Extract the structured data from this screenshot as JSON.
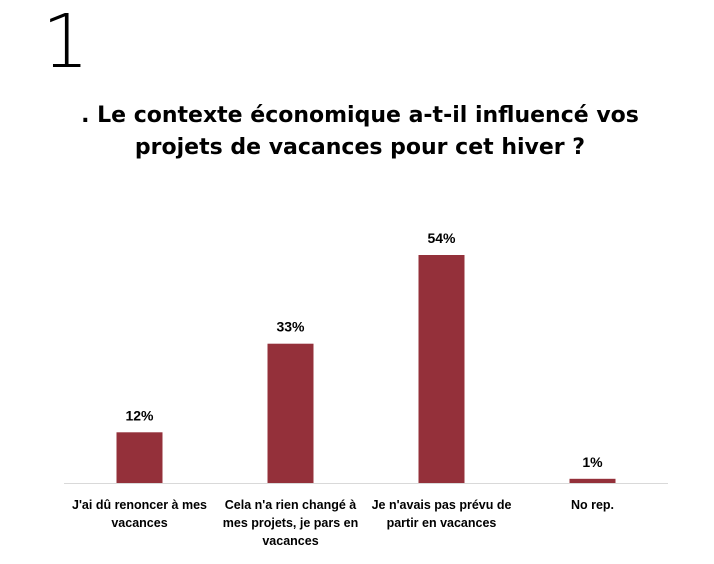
{
  "slide_number": "1",
  "title_lines": [
    ". Le contexte économique a-t-il influencé vos",
    "projets de vacances pour cet hiver ?"
  ],
  "colors": {
    "bar": "#94303a",
    "axis": "#d9d9d9",
    "text": "#000000"
  },
  "chart_data": {
    "type": "bar",
    "categories": [
      [
        "J'ai dû renoncer à mes",
        "vacances"
      ],
      [
        "Cela n'a rien changé à",
        "mes projets, je pars en",
        "vacances"
      ],
      [
        "Je n'avais pas prévu de",
        "partir en vacances"
      ],
      [
        "No rep."
      ]
    ],
    "values": [
      12,
      33,
      54,
      1
    ],
    "value_labels": [
      "12%",
      "33%",
      "54%",
      "1%"
    ],
    "title": "",
    "xlabel": "",
    "ylabel": "",
    "ylim": [
      0,
      54
    ],
    "grid": false,
    "legend": "none"
  }
}
